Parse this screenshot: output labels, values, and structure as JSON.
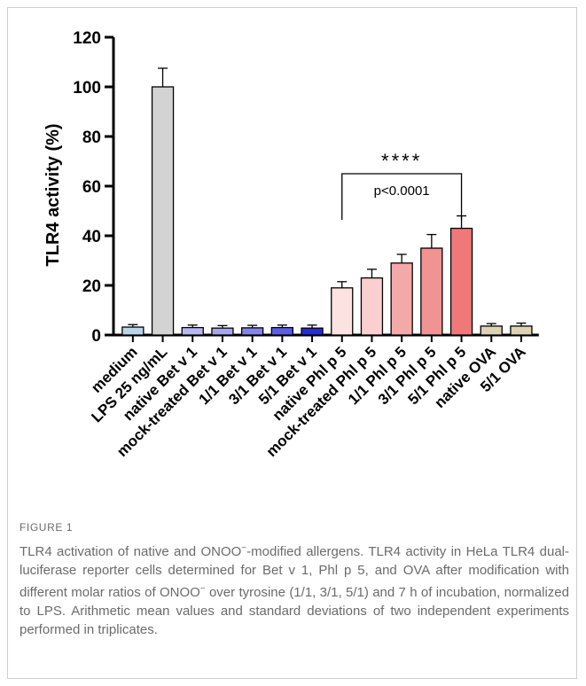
{
  "chart_data": {
    "type": "bar",
    "title": "",
    "xlabel": "",
    "ylabel": "TLR4 activity (%)",
    "ylim": [
      0,
      120
    ],
    "yticks": [
      0,
      20,
      40,
      60,
      80,
      100,
      120
    ],
    "grid": false,
    "categories": [
      "medium",
      "LPS 25 ng/mL",
      "native Bet v 1",
      "mock-treated Bet v 1",
      "1/1 Bet v 1",
      "3/1 Bet v 1",
      "5/1 Bet v 1",
      "native Phl p 5",
      "mock-treated Phl p 5",
      "1/1 Phl p 5",
      "3/1 Phl p 5",
      "5/1 Phl p 5",
      "native OVA",
      "5/1 OVA"
    ],
    "values": [
      3.2,
      100,
      3.0,
      2.8,
      2.9,
      3.0,
      2.8,
      19,
      23,
      29,
      35,
      43,
      3.6,
      3.6
    ],
    "errors": [
      1.0,
      7.5,
      1.0,
      1.0,
      1.0,
      1.0,
      1.2,
      2.5,
      3.5,
      3.5,
      5.5,
      5.0,
      1.0,
      1.2
    ],
    "colors": [
      "#bcd3ec",
      "#d3d3d3",
      "#b8b8f0",
      "#a6a6e8",
      "#8585e6",
      "#5c5ce4",
      "#2a2ad6",
      "#fde2e2",
      "#f9cfcf",
      "#f4a9a9",
      "#f09393",
      "#f07878",
      "#dcd3b4",
      "#dcd3b4"
    ],
    "annotation": {
      "from_category": 7,
      "to_category": 11,
      "bracket_y": 65,
      "stars": "****",
      "text": "p<0.0001"
    }
  },
  "caption": {
    "label": "FIGURE 1",
    "p1": "TLR4 activation of native and ONOO",
    "sup1": "−",
    "p2": "-modified allergens. TLR4 activity in HeLa TLR4 dual-luciferase reporter cells determined for Bet v 1, Phl p 5, and OVA after modification with different molar ratios of ONOO",
    "sup2": "−",
    "p3": " over tyrosine (1/1, 3/1, 5/1) and 7 h of incubation, normalized to LPS. Arithmetic mean values and standard deviations of two independent experiments performed in triplicates."
  }
}
